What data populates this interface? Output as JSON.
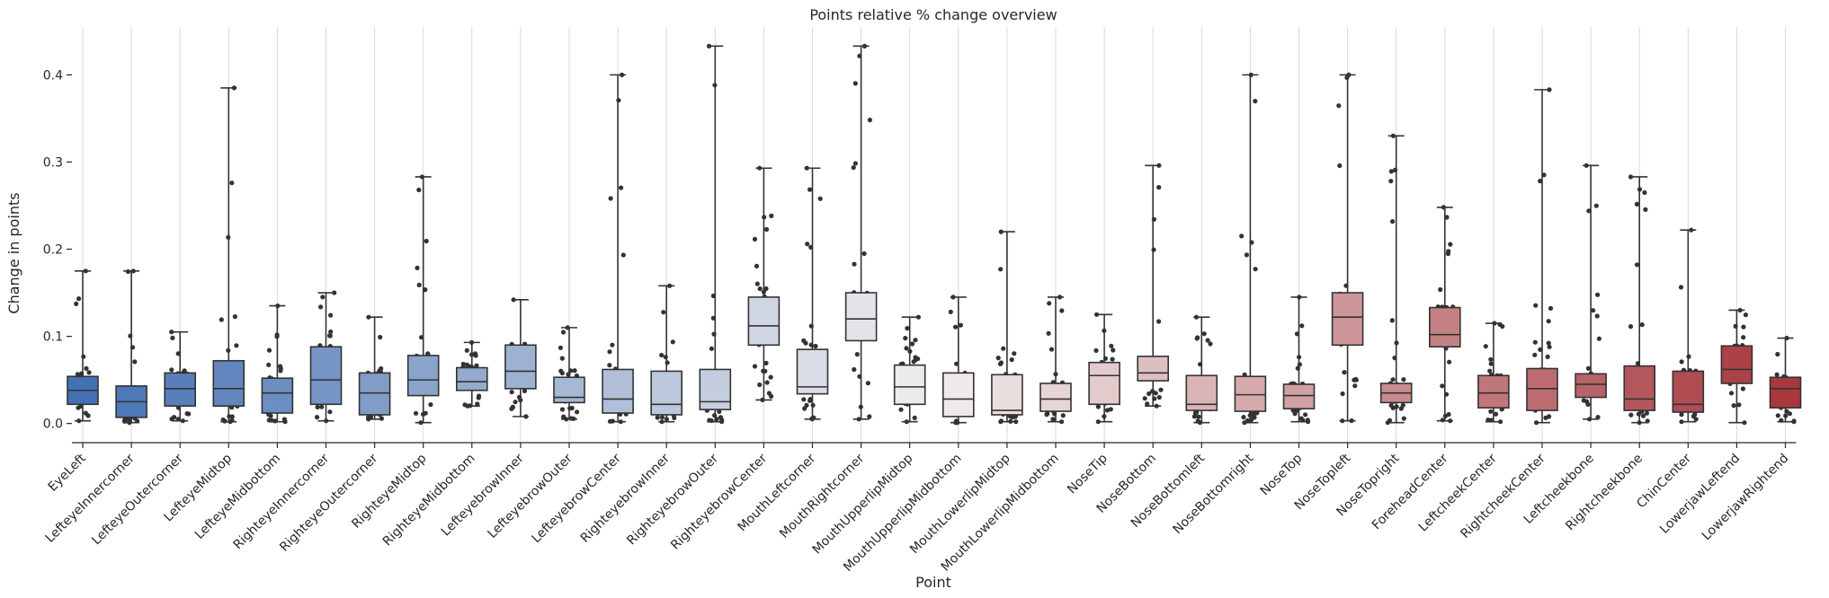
{
  "chart_data": {
    "type": "box",
    "title": "Points relative % change overview",
    "xlabel": "Point",
    "ylabel": "Change in points",
    "ylim": [
      -0.022,
      0.455
    ],
    "yticks": [
      0.0,
      0.1,
      0.2,
      0.3,
      0.4
    ],
    "ytick_labels": [
      "0.0",
      "0.1",
      "0.2",
      "0.3",
      "0.4"
    ],
    "grid": "vertical",
    "palette": {
      "start": "#4471b3",
      "mid": "#f2eeee",
      "end": "#a6383e"
    },
    "categories": [
      "EyeLeft",
      "LefteyeInnercorner",
      "LefteyeOutercorner",
      "LefteyeMidtop",
      "LefteyeMidbottom",
      "RighteyeInnercorner",
      "RighteyeOutercorner",
      "RighteyeMidtop",
      "RighteyeMidbottom",
      "LefteyebrowInner",
      "LefteyebrowOuter",
      "LefteyebrowCenter",
      "RighteyebrowInner",
      "RighteyebrowOuter",
      "RighteyebrowCenter",
      "MouthLeftcorner",
      "MouthRightcorner",
      "MouthUpperlipMidtop",
      "MouthUpperlipMidbottom",
      "MouthLowerlipMidtop",
      "MouthLowerlipMidbottom",
      "NoseTip",
      "NoseBottom",
      "NoseBottomleft",
      "NoseBottomright",
      "NoseTop",
      "NoseTopleft",
      "NoseTopright",
      "ForeheadCenter",
      "LeftcheekCenter",
      "RightcheekCenter",
      "Leftcheekbone",
      "Rightcheekbone",
      "ChinCenter",
      "LowerjawLeftend",
      "LowerjawRightend"
    ],
    "boxes": [
      {
        "whislo": 0.003,
        "q1": 0.022,
        "med": 0.038,
        "q3": 0.054,
        "whishi": 0.175
      },
      {
        "whislo": 0.001,
        "q1": 0.007,
        "med": 0.025,
        "q3": 0.043,
        "whishi": 0.175
      },
      {
        "whislo": 0.003,
        "q1": 0.02,
        "med": 0.04,
        "q3": 0.058,
        "whishi": 0.105
      },
      {
        "whislo": 0.002,
        "q1": 0.02,
        "med": 0.04,
        "q3": 0.072,
        "whishi": 0.385
      },
      {
        "whislo": 0.002,
        "q1": 0.012,
        "med": 0.035,
        "q3": 0.052,
        "whishi": 0.135
      },
      {
        "whislo": 0.003,
        "q1": 0.022,
        "med": 0.05,
        "q3": 0.088,
        "whishi": 0.15
      },
      {
        "whislo": 0.005,
        "q1": 0.01,
        "med": 0.035,
        "q3": 0.058,
        "whishi": 0.122
      },
      {
        "whislo": 0.001,
        "q1": 0.032,
        "med": 0.05,
        "q3": 0.078,
        "whishi": 0.283
      },
      {
        "whislo": 0.02,
        "q1": 0.038,
        "med": 0.048,
        "q3": 0.064,
        "whishi": 0.093
      },
      {
        "whislo": 0.008,
        "q1": 0.04,
        "med": 0.06,
        "q3": 0.09,
        "whishi": 0.142
      },
      {
        "whislo": 0.005,
        "q1": 0.024,
        "med": 0.03,
        "q3": 0.053,
        "whishi": 0.11
      },
      {
        "whislo": 0.002,
        "q1": 0.012,
        "med": 0.028,
        "q3": 0.062,
        "whishi": 0.4
      },
      {
        "whislo": 0.002,
        "q1": 0.01,
        "med": 0.022,
        "q3": 0.06,
        "whishi": 0.158
      },
      {
        "whislo": 0.002,
        "q1": 0.016,
        "med": 0.025,
        "q3": 0.062,
        "whishi": 0.433
      },
      {
        "whislo": 0.027,
        "q1": 0.09,
        "med": 0.112,
        "q3": 0.145,
        "whishi": 0.293
      },
      {
        "whislo": 0.005,
        "q1": 0.034,
        "med": 0.042,
        "q3": 0.085,
        "whishi": 0.293
      },
      {
        "whislo": 0.005,
        "q1": 0.095,
        "med": 0.12,
        "q3": 0.15,
        "whishi": 0.433
      },
      {
        "whislo": 0.002,
        "q1": 0.022,
        "med": 0.042,
        "q3": 0.067,
        "whishi": 0.122
      },
      {
        "whislo": 0.001,
        "q1": 0.008,
        "med": 0.028,
        "q3": 0.058,
        "whishi": 0.145
      },
      {
        "whislo": 0.002,
        "q1": 0.01,
        "med": 0.015,
        "q3": 0.056,
        "whishi": 0.22
      },
      {
        "whislo": 0.002,
        "q1": 0.014,
        "med": 0.028,
        "q3": 0.046,
        "whishi": 0.145
      },
      {
        "whislo": 0.002,
        "q1": 0.022,
        "med": 0.055,
        "q3": 0.07,
        "whishi": 0.125
      },
      {
        "whislo": 0.02,
        "q1": 0.049,
        "med": 0.058,
        "q3": 0.077,
        "whishi": 0.296
      },
      {
        "whislo": 0.001,
        "q1": 0.015,
        "med": 0.022,
        "q3": 0.055,
        "whishi": 0.122
      },
      {
        "whislo": 0.001,
        "q1": 0.014,
        "med": 0.033,
        "q3": 0.054,
        "whishi": 0.4
      },
      {
        "whislo": 0.002,
        "q1": 0.017,
        "med": 0.032,
        "q3": 0.045,
        "whishi": 0.145
      },
      {
        "whislo": 0.003,
        "q1": 0.09,
        "med": 0.122,
        "q3": 0.15,
        "whishi": 0.4
      },
      {
        "whislo": 0.001,
        "q1": 0.024,
        "med": 0.035,
        "q3": 0.046,
        "whishi": 0.33
      },
      {
        "whislo": 0.003,
        "q1": 0.088,
        "med": 0.102,
        "q3": 0.133,
        "whishi": 0.248
      },
      {
        "whislo": 0.002,
        "q1": 0.018,
        "med": 0.035,
        "q3": 0.055,
        "whishi": 0.115
      },
      {
        "whislo": 0.001,
        "q1": 0.015,
        "med": 0.04,
        "q3": 0.063,
        "whishi": 0.383
      },
      {
        "whislo": 0.005,
        "q1": 0.03,
        "med": 0.045,
        "q3": 0.057,
        "whishi": 0.296
      },
      {
        "whislo": 0.001,
        "q1": 0.015,
        "med": 0.028,
        "q3": 0.066,
        "whishi": 0.283
      },
      {
        "whislo": 0.002,
        "q1": 0.013,
        "med": 0.022,
        "q3": 0.06,
        "whishi": 0.222
      },
      {
        "whislo": 0.001,
        "q1": 0.046,
        "med": 0.062,
        "q3": 0.089,
        "whishi": 0.13
      },
      {
        "whislo": 0.002,
        "q1": 0.018,
        "med": 0.04,
        "q3": 0.053,
        "whishi": 0.098
      }
    ]
  }
}
